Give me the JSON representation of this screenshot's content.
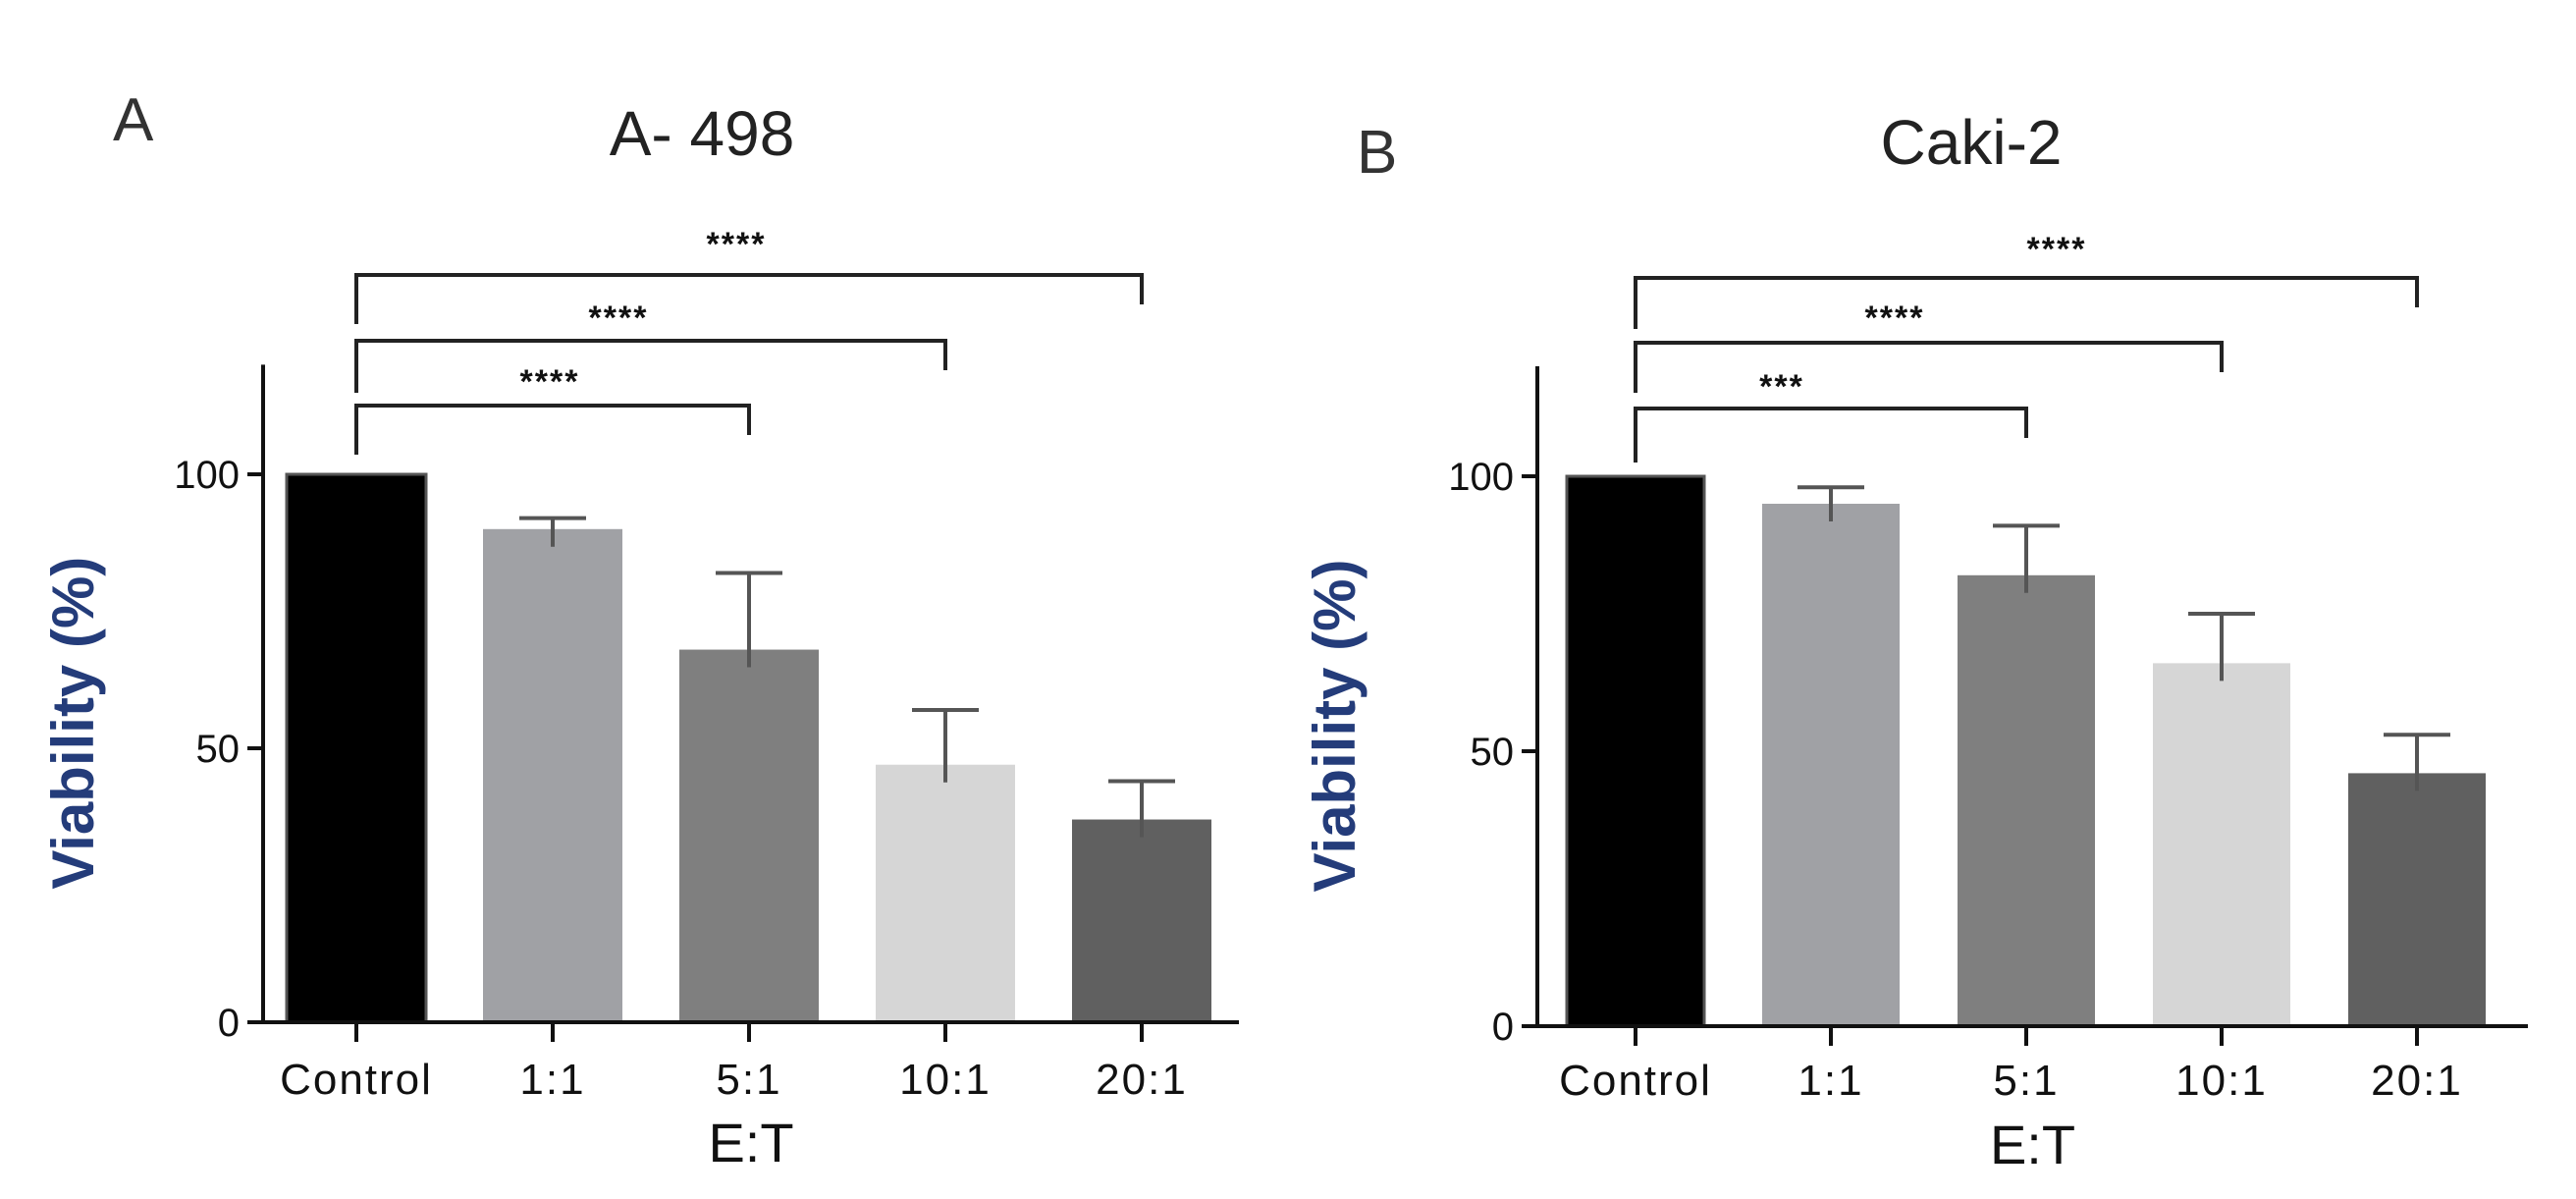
{
  "chart_data": [
    {
      "type": "bar",
      "panel": "A",
      "title": "A- 498",
      "xlabel": "E:T",
      "ylabel": "Viability (%)",
      "categories": [
        "Control",
        "1:1",
        "5:1",
        "10:1",
        "20:1"
      ],
      "values": [
        100,
        90,
        68,
        47,
        37
      ],
      "errors": [
        0,
        2,
        14,
        10,
        7
      ],
      "bar_colors": [
        "#000000",
        "#a0a1a5",
        "#7f7f7f",
        "#d6d6d6",
        "#606060"
      ],
      "ylim": [
        0,
        120
      ],
      "yticks": [
        0,
        50,
        100
      ],
      "significance": [
        {
          "from": "Control",
          "to": "5:1",
          "label": "****"
        },
        {
          "from": "Control",
          "to": "10:1",
          "label": "****"
        },
        {
          "from": "Control",
          "to": "20:1",
          "label": "****"
        }
      ]
    },
    {
      "type": "bar",
      "panel": "B",
      "title": "Caki-2",
      "xlabel": "E:T",
      "ylabel": "Viability (%)",
      "categories": [
        "Control",
        "1:1",
        "5:1",
        "10:1",
        "20:1"
      ],
      "values": [
        100,
        95,
        82,
        66,
        46
      ],
      "errors": [
        0,
        3,
        9,
        9,
        7
      ],
      "bar_colors": [
        "#000000",
        "#a0a1a5",
        "#7f7f7f",
        "#d6d6d6",
        "#606060"
      ],
      "ylim": [
        0,
        120
      ],
      "yticks": [
        0,
        50,
        100
      ],
      "significance": [
        {
          "from": "Control",
          "to": "5:1",
          "label": "***"
        },
        {
          "from": "Control",
          "to": "10:1",
          "label": "****"
        },
        {
          "from": "Control",
          "to": "20:1",
          "label": "****"
        }
      ]
    }
  ]
}
